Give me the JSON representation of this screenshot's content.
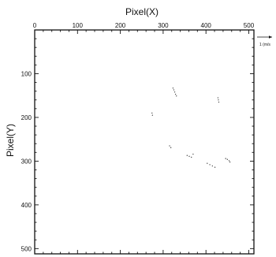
{
  "chart_data": {
    "type": "scatter",
    "title": "",
    "xlabel": "Pixel(X)",
    "ylabel": "Pixel(Y)",
    "xlim": [
      0,
      512
    ],
    "ylim": [
      0,
      512
    ],
    "x_axis_position": "top",
    "y_axis_inverted": true,
    "x_ticks": [
      0,
      100,
      200,
      300,
      400,
      500
    ],
    "y_ticks": [
      100,
      200,
      300,
      400,
      500
    ],
    "grid": false,
    "reference_vector": {
      "label": "1 (m/s",
      "magnitude": 1
    },
    "series": [
      {
        "points": [
          {
            "x": 323,
            "y": 133
          },
          {
            "x": 325,
            "y": 137
          },
          {
            "x": 327,
            "y": 142
          },
          {
            "x": 329,
            "y": 147
          },
          {
            "x": 331,
            "y": 151
          },
          {
            "x": 428,
            "y": 155
          },
          {
            "x": 429,
            "y": 160
          },
          {
            "x": 430,
            "y": 165
          },
          {
            "x": 274,
            "y": 190
          },
          {
            "x": 275,
            "y": 195
          },
          {
            "x": 315,
            "y": 265
          },
          {
            "x": 318,
            "y": 269
          },
          {
            "x": 356,
            "y": 287
          },
          {
            "x": 361,
            "y": 289
          },
          {
            "x": 366,
            "y": 291
          },
          {
            "x": 370,
            "y": 284
          },
          {
            "x": 403,
            "y": 305
          },
          {
            "x": 409,
            "y": 308
          },
          {
            "x": 415,
            "y": 311
          },
          {
            "x": 421,
            "y": 314
          },
          {
            "x": 446,
            "y": 294
          },
          {
            "x": 450,
            "y": 296
          },
          {
            "x": 454,
            "y": 299
          },
          {
            "x": 456,
            "y": 302
          }
        ]
      }
    ]
  }
}
